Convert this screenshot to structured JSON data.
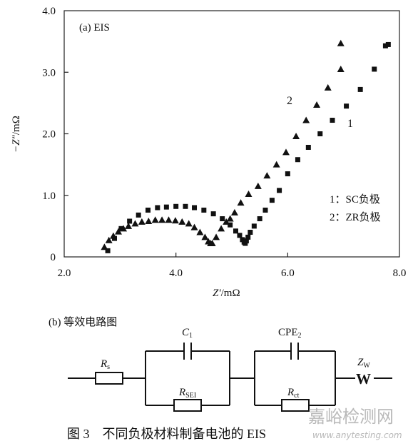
{
  "chart_data": {
    "type": "scatter",
    "panel_label": "(a) EIS",
    "xlabel_main": "Z′",
    "xlabel_unit": "/mΩ",
    "ylabel_main": "−Z″",
    "ylabel_unit": "/mΩ",
    "xlim": [
      2.0,
      8.0
    ],
    "ylim": [
      0,
      4.0
    ],
    "xticks": [
      "2.0",
      "4.0",
      "6.0",
      "8.0"
    ],
    "yticks": [
      "0",
      "1.0",
      "2.0",
      "3.0",
      "4.0"
    ],
    "xtick_values": [
      2.0,
      4.0,
      6.0,
      8.0
    ],
    "ytick_values": [
      0,
      1.0,
      2.0,
      3.0,
      4.0
    ],
    "legend": {
      "position": "right-middle",
      "entries": [
        "1：SC负极",
        "2：ZR负极"
      ]
    },
    "series": [
      {
        "label": "1",
        "marker": "square",
        "x": [
          2.78,
          2.9,
          3.02,
          3.17,
          3.33,
          3.5,
          3.67,
          3.83,
          4.0,
          4.17,
          4.33,
          4.5,
          4.67,
          4.83,
          4.97,
          5.07,
          5.14,
          5.19,
          5.22,
          5.24,
          5.26,
          5.29,
          5.33,
          5.4,
          5.5,
          5.6,
          5.72,
          5.85,
          6.0,
          6.18,
          6.37,
          6.58,
          6.8,
          7.05,
          7.3,
          7.55,
          7.8
        ],
        "y": [
          0.1,
          0.3,
          0.46,
          0.58,
          0.68,
          0.76,
          0.8,
          0.81,
          0.82,
          0.82,
          0.8,
          0.76,
          0.7,
          0.62,
          0.52,
          0.42,
          0.35,
          0.28,
          0.24,
          0.22,
          0.26,
          0.32,
          0.4,
          0.5,
          0.62,
          0.76,
          0.92,
          1.08,
          1.35,
          1.58,
          1.78,
          2.0,
          2.22,
          2.45,
          2.72,
          3.05,
          3.45
        ]
      },
      {
        "label": "2",
        "marker": "triangle",
        "x": [
          2.72,
          2.8,
          2.88,
          2.97,
          3.06,
          3.15,
          3.27,
          3.39,
          3.51,
          3.63,
          3.75,
          3.87,
          3.99,
          4.11,
          4.23,
          4.33,
          4.43,
          4.52,
          4.58,
          4.62,
          4.65,
          4.72,
          4.81,
          4.9,
          4.97,
          5.05,
          5.16,
          5.3,
          5.47,
          5.63,
          5.8,
          5.97,
          6.15,
          6.33,
          6.52,
          6.72,
          6.95
        ],
        "y": [
          0.16,
          0.27,
          0.34,
          0.41,
          0.46,
          0.5,
          0.54,
          0.57,
          0.58,
          0.6,
          0.6,
          0.6,
          0.59,
          0.57,
          0.54,
          0.48,
          0.4,
          0.32,
          0.25,
          0.22,
          0.22,
          0.32,
          0.46,
          0.57,
          0.62,
          0.72,
          0.88,
          1.02,
          1.15,
          1.32,
          1.5,
          1.7,
          1.96,
          2.22,
          2.47,
          2.75,
          3.05
        ]
      }
    ],
    "extra_points": {
      "s1": [
        [
          7.75,
          3.43
        ]
      ],
      "s2": [
        [
          6.95,
          3.47
        ]
      ]
    },
    "series_annotations": [
      {
        "text": "1",
        "x": 7.15,
        "y": 2.15
      },
      {
        "text": "2",
        "x": 6.03,
        "y": 2.55
      }
    ]
  },
  "circuit": {
    "title": "(b) 等效电路图",
    "components": {
      "rs": {
        "label": "R",
        "sub": "s"
      },
      "c1": {
        "label": "C",
        "sub": "1"
      },
      "rsei": {
        "label": "R",
        "sub": "SEI"
      },
      "cpe2": {
        "label": "CPE",
        "sub": "2"
      },
      "rct": {
        "label": "R",
        "sub": "ct"
      },
      "zw": {
        "label": "Z",
        "sub": "W"
      },
      "w_symbol": "W"
    }
  },
  "caption": "图 3　不同负极材料制备电池的 EIS",
  "watermark": {
    "cn": "嘉峪检测网",
    "en": "www.anytesting.com"
  }
}
